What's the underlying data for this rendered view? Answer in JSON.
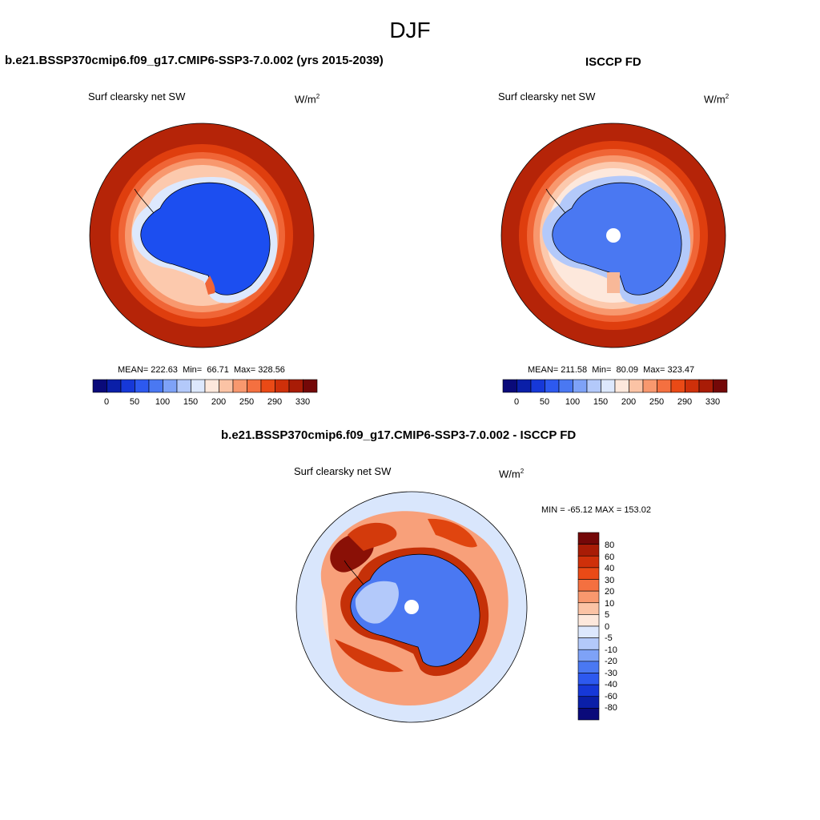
{
  "title": "DJF",
  "units": "W/m",
  "units_exp": "2",
  "palette_abs": [
    "#0a0a7a",
    "#0a1fa8",
    "#1638d8",
    "#2d59ef",
    "#4a78f2",
    "#7ea2f7",
    "#b3c9fa",
    "#dde8fd",
    "#fde8dc",
    "#fbc3a5",
    "#f8986e",
    "#f47040",
    "#ea4a16",
    "#cf300a",
    "#a81c06",
    "#740808"
  ],
  "palette_diff": [
    "#0a0a7a",
    "#0a1fa8",
    "#1638d8",
    "#2d59ef",
    "#4a78f2",
    "#7ea2f7",
    "#b3c9fa",
    "#dde8fd",
    "#fde8dc",
    "#fbc3a5",
    "#f8986e",
    "#f47040",
    "#ea4a16",
    "#cf300a",
    "#a81c06",
    "#740808"
  ],
  "panels": [
    {
      "title": "b.e21.BSSP370cmip6.f09_g17.CMIP6-SSP3-7.0.002 (yrs 2015-2039)",
      "variable": "Surf clearsky net SW",
      "mean_label": "MEAN=",
      "mean": "222.63",
      "min_label": "Min=",
      "min": "66.71",
      "max_label": "Max=",
      "max": "328.56",
      "colorbar_ticks": [
        "0",
        "50",
        "100",
        "150",
        "200",
        "250",
        "290",
        "330"
      ]
    },
    {
      "title": "ISCCP FD",
      "variable": "Surf clearsky net SW",
      "mean_label": "MEAN=",
      "mean": "211.58",
      "min_label": "Min=",
      "min": "80.09",
      "max_label": "Max=",
      "max": "323.47",
      "colorbar_ticks": [
        "0",
        "50",
        "100",
        "150",
        "200",
        "250",
        "290",
        "330"
      ]
    },
    {
      "title": "b.e21.BSSP370cmip6.f09_g17.CMIP6-SSP3-7.0.002 - ISCCP FD",
      "variable": "Surf clearsky net SW",
      "minmax": "MIN = -65.12 MAX = 153.02",
      "colorbar_ticks": [
        "80",
        "60",
        "40",
        "30",
        "20",
        "10",
        "5",
        "0",
        "-5",
        "-10",
        "-20",
        "-30",
        "-40",
        "-60",
        "-80"
      ]
    }
  ]
}
